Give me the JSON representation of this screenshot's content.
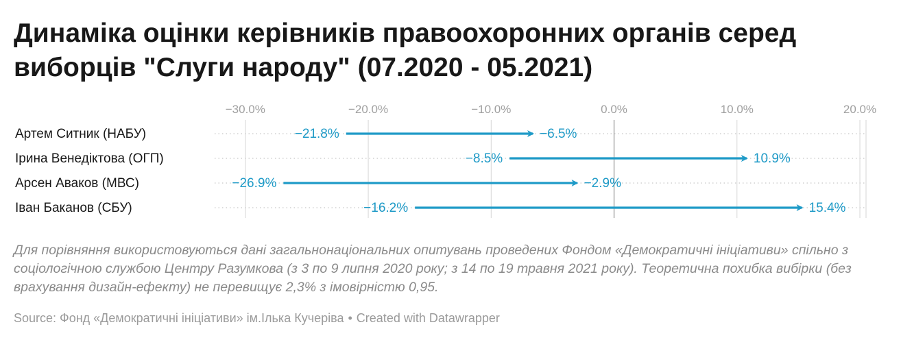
{
  "chart_data": {
    "type": "arrow",
    "title": "Динаміка оцінки керівників правоохоронних органів серед виборців \"Слуги народу\" (07.2020 - 05.2021)",
    "x_ticks": [
      "−30.0%",
      "−20.0%",
      "−10.0%",
      "0.0%",
      "10.0%",
      "20.0%"
    ],
    "x_tick_values": [
      -30,
      -20,
      -10,
      0,
      10,
      20
    ],
    "xlim": [
      -32.5,
      20.5
    ],
    "grid": true,
    "rows": [
      {
        "label": "Артем Ситник (НАБУ)",
        "start": -21.8,
        "end": -6.5,
        "start_label": "−21.8%",
        "end_label": "−6.5%"
      },
      {
        "label": "Ірина Венедіктова (ОГП)",
        "start": -8.5,
        "end": 10.9,
        "start_label": "−8.5%",
        "end_label": "10.9%"
      },
      {
        "label": "Арсен Аваков (МВС)",
        "start": -26.9,
        "end": -2.9,
        "start_label": "−26.9%",
        "end_label": "−2.9%"
      },
      {
        "label": "Іван Баканов (СБУ)",
        "start": -16.2,
        "end": 15.4,
        "start_label": "−16.2%",
        "end_label": "15.4%"
      }
    ],
    "colors": {
      "arrow": "#1e9ac7",
      "grid": "#d6d6d6",
      "zero_line": "#9c9c9c",
      "tick_text": "#a0a0a0",
      "row_label": "#181818"
    }
  },
  "notes": "Для порівняння використовуються дані загальнонаціональних опитувань проведених Фондом «Демократичні ініціативи» спільно з соціологічною службою Центру Разумкова (з 3 по 9 липня 2020 року; з 14 по 19 травня 2021 року). Теоретична похибка вибірки (без врахування дизайн-ефекту) не перевищує 2,3% з імовірністю 0,95.",
  "footer": {
    "source": "Source: Фонд «Демократичні ініціативи» ім.Ілька Кучеріва",
    "separator": "•",
    "credit": "Created with Datawrapper"
  }
}
